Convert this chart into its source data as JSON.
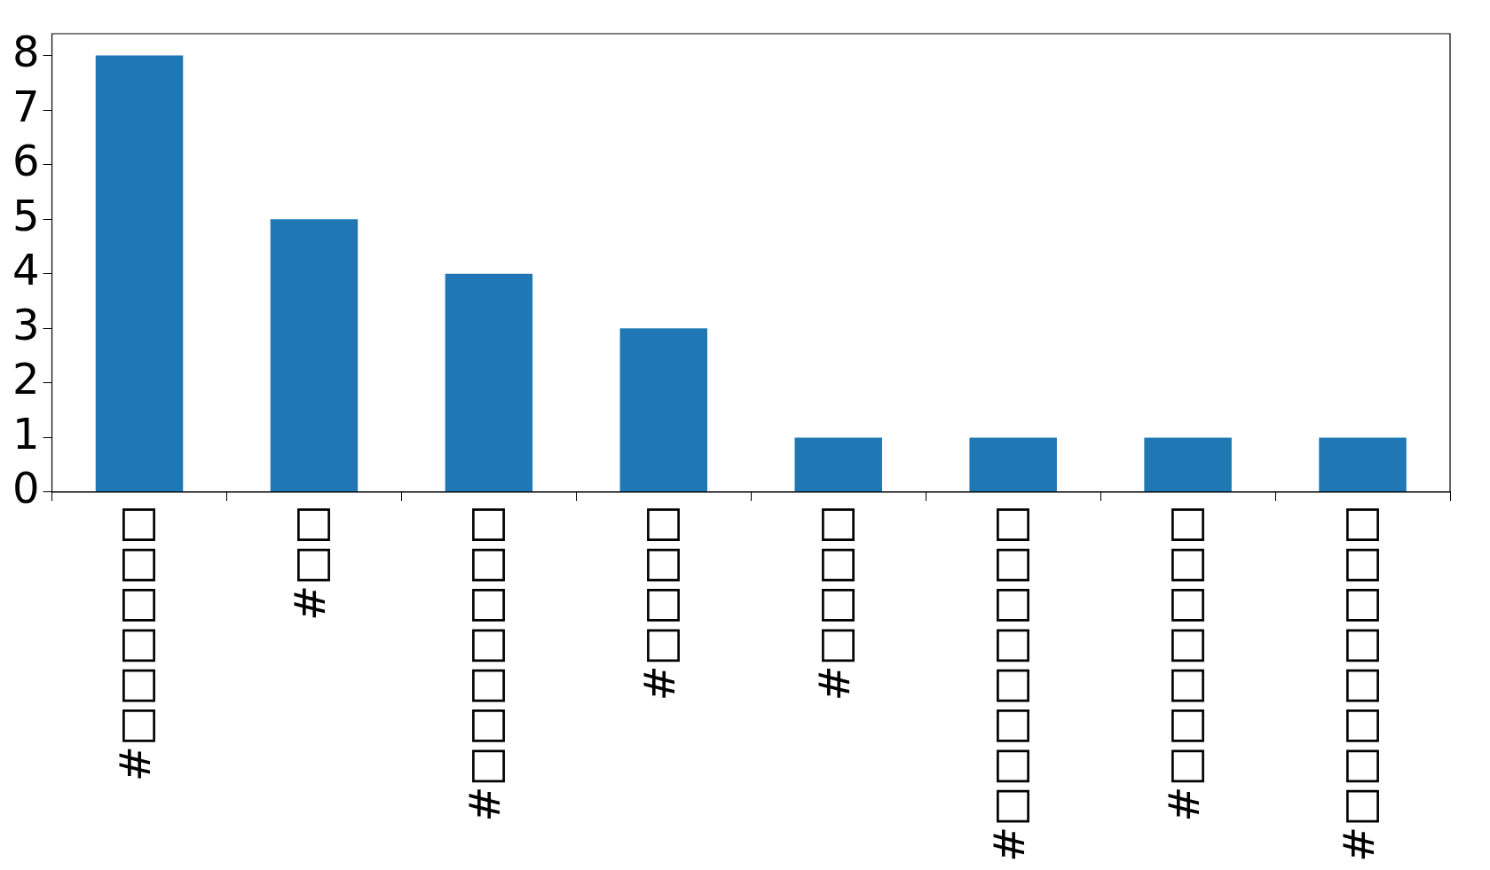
{
  "chart_data": {
    "type": "bar",
    "categories": [
      "#□□□□□□",
      "#□□",
      "#□□□□□□□",
      "#□□□□",
      "#□□□□",
      "#□□□□□□□□",
      "#□□□□□□□",
      "#□□□□□□□□"
    ],
    "values": [
      8,
      5,
      4,
      3,
      1,
      1,
      1,
      1
    ],
    "color": "#1f77b4",
    "ylim": [
      0,
      8.4
    ],
    "yticks": [
      0,
      1,
      2,
      3,
      4,
      5,
      6,
      7,
      8
    ],
    "grid": false,
    "legend": false
  }
}
